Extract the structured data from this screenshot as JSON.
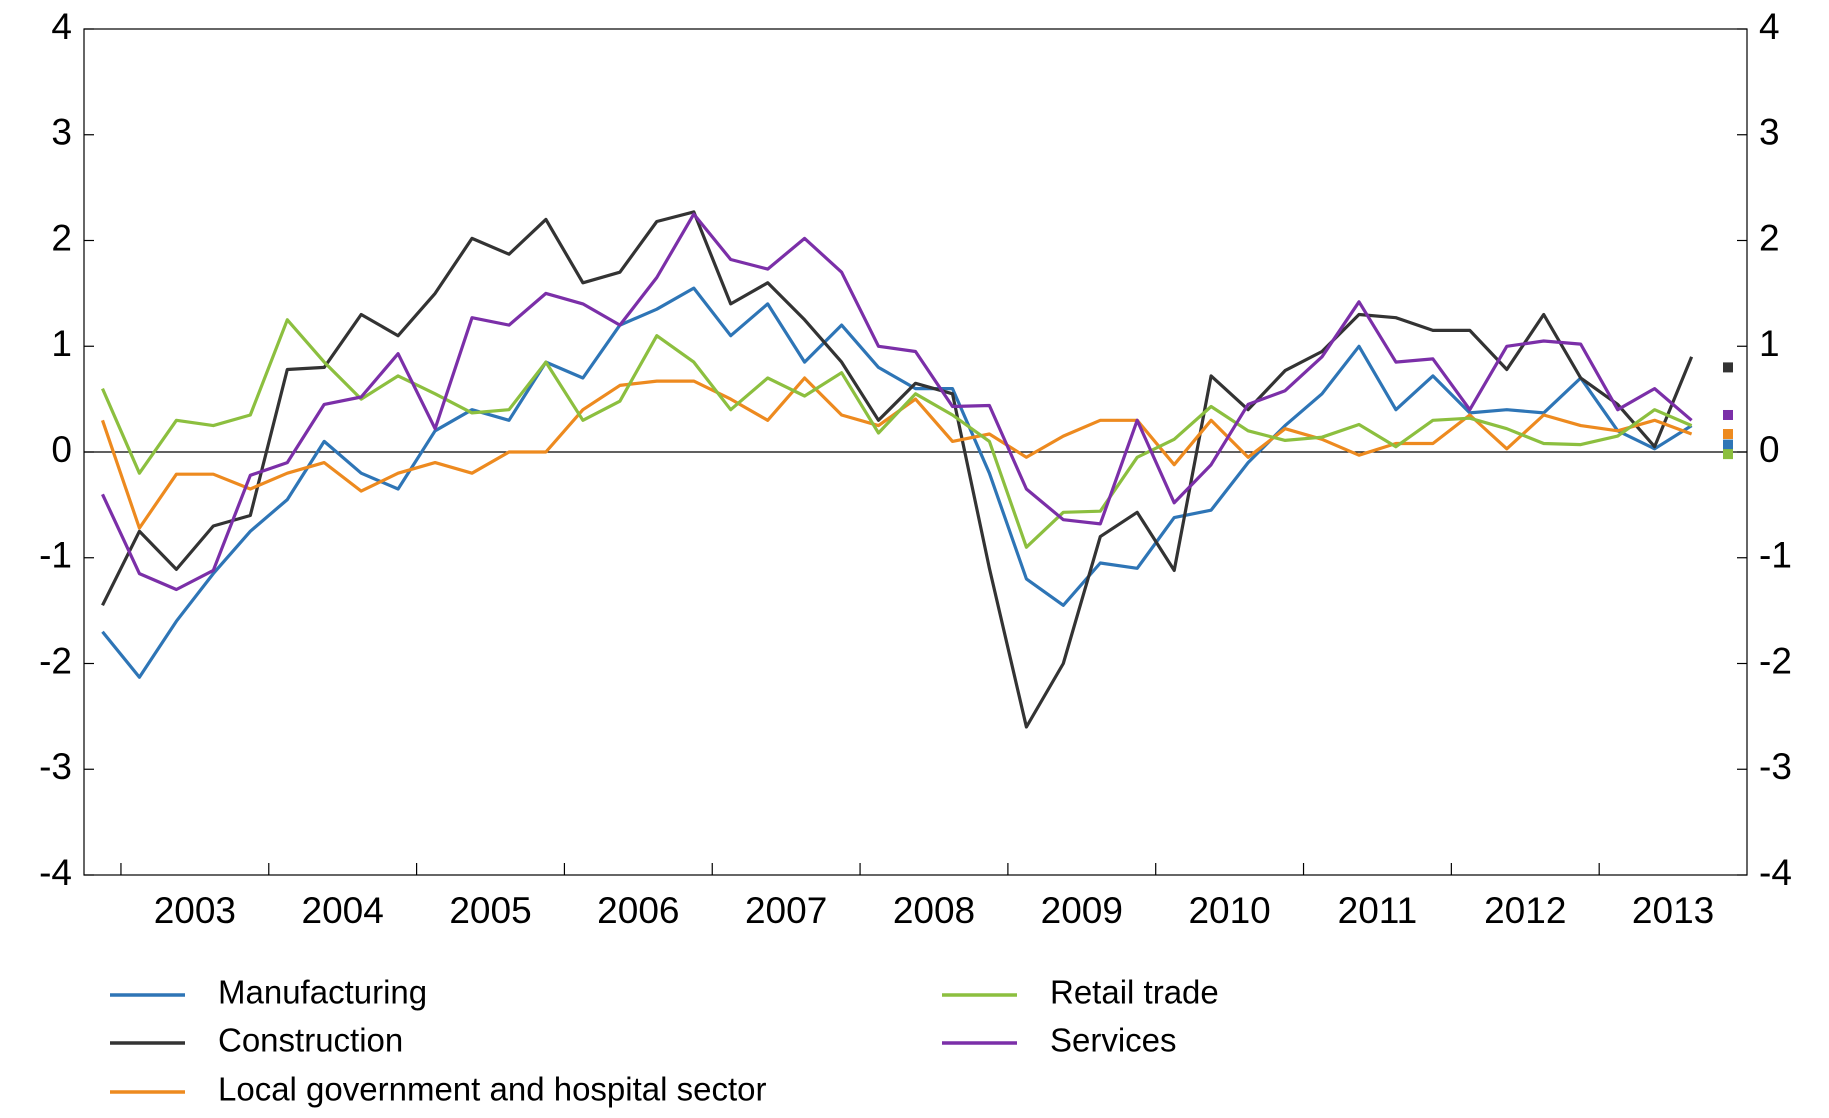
{
  "chart_data": {
    "type": "line",
    "x": [
      2002.875,
      2003.125,
      2003.375,
      2003.625,
      2003.875,
      2004.125,
      2004.375,
      2004.625,
      2004.875,
      2005.125,
      2005.375,
      2005.625,
      2005.875,
      2006.125,
      2006.375,
      2006.625,
      2006.875,
      2007.125,
      2007.375,
      2007.625,
      2007.875,
      2008.125,
      2008.375,
      2008.625,
      2008.875,
      2009.125,
      2009.375,
      2009.625,
      2009.875,
      2010.125,
      2010.375,
      2010.625,
      2010.875,
      2011.125,
      2011.375,
      2011.625,
      2011.875,
      2012.125,
      2012.375,
      2012.625,
      2012.875,
      2013.125,
      2013.375,
      2013.625
    ],
    "series": [
      {
        "name": "Manufacturing",
        "color": "#2e75b6",
        "marker": 0.07,
        "values": [
          -1.7,
          -2.13,
          -1.6,
          -1.15,
          -0.75,
          -0.45,
          0.1,
          -0.2,
          -0.35,
          0.2,
          0.4,
          0.3,
          0.85,
          0.7,
          1.2,
          1.35,
          1.55,
          1.1,
          1.4,
          0.85,
          1.2,
          0.8,
          0.6,
          0.6,
          -0.2,
          -1.2,
          -1.45,
          -1.05,
          -1.1,
          -0.62,
          -0.55,
          -0.1,
          0.25,
          0.55,
          1.0,
          0.4,
          0.72,
          0.37,
          0.4,
          0.37,
          0.7,
          0.2,
          0.03,
          0.25
        ]
      },
      {
        "name": "Construction",
        "color": "#333333",
        "marker": 0.8,
        "values": [
          -1.45,
          -0.75,
          -1.11,
          -0.7,
          -0.6,
          0.78,
          0.8,
          1.3,
          1.1,
          1.5,
          2.02,
          1.87,
          2.2,
          1.6,
          1.7,
          2.18,
          2.27,
          1.4,
          1.6,
          1.25,
          0.85,
          0.3,
          0.65,
          0.55,
          -1.1,
          -2.6,
          -2.0,
          -0.8,
          -0.57,
          -1.12,
          0.72,
          0.4,
          0.77,
          0.95,
          1.3,
          1.27,
          1.15,
          1.15,
          0.78,
          1.3,
          0.7,
          0.45,
          0.05,
          0.9
        ]
      },
      {
        "name": "Local government and hospital sector",
        "color": "#ed8a1f",
        "marker": 0.17,
        "values": [
          0.3,
          -0.72,
          -0.21,
          -0.21,
          -0.35,
          -0.2,
          -0.1,
          -0.37,
          -0.2,
          -0.1,
          -0.2,
          0,
          0,
          0.4,
          0.63,
          0.67,
          0.67,
          0.5,
          0.3,
          0.7,
          0.35,
          0.25,
          0.5,
          0.1,
          0.17,
          -0.05,
          0.15,
          0.3,
          0.3,
          -0.12,
          0.3,
          -0.05,
          0.22,
          0.12,
          -0.03,
          0.08,
          0.08,
          0.35,
          0.03,
          0.35,
          0.25,
          0.2,
          0.3,
          0.17
        ]
      },
      {
        "name": "Retail trade",
        "color": "#8cbf3f",
        "marker": -0.02,
        "values": [
          0.6,
          -0.2,
          0.3,
          0.25,
          0.35,
          1.25,
          0.85,
          0.5,
          0.72,
          0.55,
          0.37,
          0.4,
          0.85,
          0.3,
          0.48,
          1.1,
          0.85,
          0.4,
          0.7,
          0.53,
          0.75,
          0.18,
          0.55,
          0.35,
          0.1,
          -0.9,
          -0.57,
          -0.56,
          -0.05,
          0.12,
          0.43,
          0.2,
          0.11,
          0.14,
          0.26,
          0.05,
          0.3,
          0.32,
          0.22,
          0.08,
          0.07,
          0.15,
          0.4,
          0.25
        ]
      },
      {
        "name": "Services",
        "color": "#7b2fa8",
        "marker": 0.35,
        "values": [
          -0.4,
          -1.15,
          -1.3,
          -1.12,
          -0.22,
          -0.1,
          0.45,
          0.52,
          0.93,
          0.22,
          1.27,
          1.2,
          1.5,
          1.4,
          1.2,
          1.65,
          2.25,
          1.82,
          1.73,
          2.02,
          1.7,
          1.0,
          0.95,
          0.43,
          0.44,
          -0.35,
          -0.64,
          -0.68,
          0.3,
          -0.48,
          -0.12,
          0.45,
          0.58,
          0.9,
          1.42,
          0.85,
          0.88,
          0.4,
          1.0,
          1.05,
          1.02,
          0.4,
          0.6,
          0.3
        ]
      }
    ],
    "xlim": [
      2002.75,
      2014
    ],
    "xticks": [
      {
        "value": 2003.5,
        "label": "2003"
      },
      {
        "value": 2004.5,
        "label": "2004"
      },
      {
        "value": 2005.5,
        "label": "2005"
      },
      {
        "value": 2006.5,
        "label": "2006"
      },
      {
        "value": 2007.5,
        "label": "2007"
      },
      {
        "value": 2008.5,
        "label": "2008"
      },
      {
        "value": 2009.5,
        "label": "2009"
      },
      {
        "value": 2010.5,
        "label": "2010"
      },
      {
        "value": 2011.5,
        "label": "2011"
      },
      {
        "value": 2012.5,
        "label": "2012"
      },
      {
        "value": 2013.5,
        "label": "2013"
      }
    ],
    "ylim": [
      -4,
      4
    ],
    "yticks": [
      -4,
      -3,
      -2,
      -1,
      0,
      1,
      2,
      3,
      4
    ],
    "y2lim": [
      -4,
      4
    ],
    "y2ticks": [
      -4,
      -3,
      -2,
      -1,
      0,
      1,
      2,
      3,
      4
    ],
    "grid": false
  }
}
